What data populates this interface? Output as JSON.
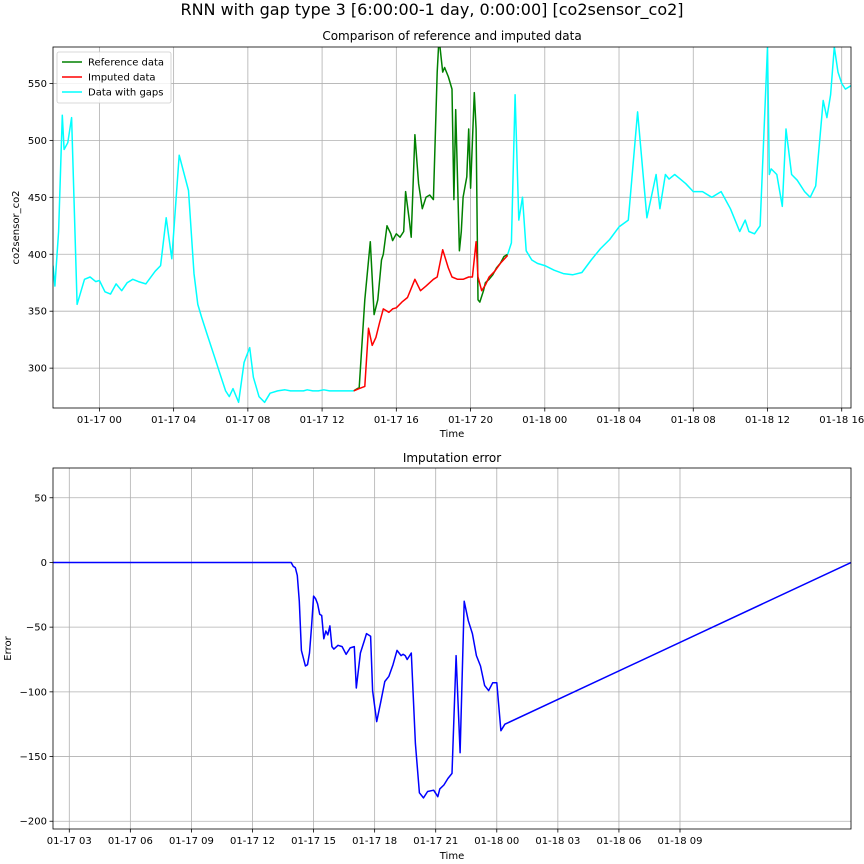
{
  "figure": {
    "suptitle": "RNN with gap type 3 [6:00:00-1 day, 0:00:00] [co2sensor_co2]"
  },
  "chart_data": [
    {
      "type": "line",
      "title": "Comparison of reference and imputed data",
      "xlabel": "Time",
      "ylabel": "co2sensor_co2",
      "x_unit": "hours since 2018-01-16 00:00",
      "xlim": [
        21.5,
        64.5
      ],
      "ylim": [
        265,
        582
      ],
      "xticks": [
        {
          "value": 24,
          "label": "01-17 00"
        },
        {
          "value": 28,
          "label": "01-17 04"
        },
        {
          "value": 32,
          "label": "01-17 08"
        },
        {
          "value": 36,
          "label": "01-17 12"
        },
        {
          "value": 40,
          "label": "01-17 16"
        },
        {
          "value": 44,
          "label": "01-17 20"
        },
        {
          "value": 48,
          "label": "01-18 00"
        },
        {
          "value": 52,
          "label": "01-18 04"
        },
        {
          "value": 56,
          "label": "01-18 08"
        },
        {
          "value": 60,
          "label": "01-18 12"
        },
        {
          "value": 64,
          "label": "01-18 16"
        }
      ],
      "yticks": [
        300,
        350,
        400,
        450,
        500,
        550
      ],
      "grid": true,
      "legend": "top-left",
      "series": [
        {
          "name": "Reference data",
          "color": "#008000",
          "x": [
            37.7,
            38.0,
            38.3,
            38.6,
            38.8,
            39.0,
            39.2,
            39.3,
            39.5,
            39.7,
            39.8,
            40.0,
            40.2,
            40.4,
            40.5,
            40.7,
            40.8,
            41.0,
            41.2,
            41.4,
            41.6,
            41.8,
            42.0,
            42.2,
            42.3,
            42.5,
            42.6,
            42.8,
            43.0,
            43.1,
            43.2,
            43.4,
            43.5,
            43.6,
            43.8,
            43.9,
            44.0,
            44.2,
            44.3,
            44.4,
            44.5,
            44.7,
            44.8,
            45.0,
            45.2,
            45.4,
            45.6,
            45.8,
            46.0
          ],
          "y": [
            280,
            283,
            360,
            411,
            347,
            360,
            395,
            400,
            425,
            418,
            412,
            418,
            415,
            420,
            455,
            430,
            415,
            505,
            462,
            440,
            450,
            452,
            448,
            560,
            590,
            560,
            564,
            556,
            545,
            448,
            527,
            403,
            420,
            450,
            468,
            510,
            458,
            542,
            510,
            360,
            358,
            368,
            375,
            378,
            382,
            388,
            392,
            398,
            400
          ]
        },
        {
          "name": "Imputed data",
          "color": "#ff0000",
          "x": [
            37.7,
            38.0,
            38.3,
            38.5,
            38.7,
            38.9,
            39.1,
            39.3,
            39.6,
            39.8,
            40.0,
            40.3,
            40.6,
            41.0,
            41.3,
            41.6,
            41.8,
            42.0,
            42.2,
            42.5,
            42.8,
            43.0,
            43.3,
            43.6,
            43.9,
            44.1,
            44.3,
            44.4,
            44.6,
            44.8,
            45.0,
            45.3,
            45.6,
            46.0
          ],
          "y": [
            280,
            282,
            284,
            335,
            320,
            327,
            340,
            352,
            349,
            352,
            353,
            358,
            362,
            378,
            368,
            372,
            375,
            378,
            380,
            404,
            388,
            380,
            378,
            378,
            380,
            380,
            411,
            380,
            368,
            373,
            380,
            385,
            392,
            399
          ]
        },
        {
          "name": "Data with gaps",
          "color": "#00ffff",
          "x": [
            21.5,
            21.6,
            21.8,
            22.0,
            22.1,
            22.3,
            22.5,
            22.8,
            23.2,
            23.5,
            23.8,
            24.0,
            24.3,
            24.6,
            24.9,
            25.2,
            25.5,
            25.8,
            26.1,
            26.5,
            27.0,
            27.3,
            27.6,
            27.9,
            28.3,
            28.8,
            29.1,
            29.3,
            29.5,
            29.8,
            30.2,
            30.5,
            30.8,
            31.0,
            31.2,
            31.5,
            31.8,
            32.1,
            32.3,
            32.6,
            32.9,
            33.2,
            33.6,
            34.0,
            34.3,
            34.6,
            34.8,
            35.0,
            35.2,
            35.5,
            35.8,
            36.1,
            36.4,
            36.7,
            37.0,
            37.4,
            37.7
          ],
          "y": [
            390,
            372,
            420,
            522,
            492,
            498,
            520,
            356,
            378,
            380,
            376,
            377,
            367,
            365,
            374,
            368,
            375,
            378,
            376,
            374,
            385,
            390,
            432,
            396,
            487,
            456,
            383,
            356,
            345,
            330,
            310,
            295,
            280,
            275,
            282,
            270,
            305,
            318,
            292,
            275,
            270,
            278,
            280,
            281,
            280,
            280,
            280,
            280,
            281,
            280,
            280,
            281,
            280,
            280,
            280,
            280,
            280
          ]
        },
        {
          "name": "Data with gaps",
          "color": "#00ffff",
          "x": [
            46.0,
            46.2,
            46.4,
            46.6,
            46.8,
            47.0,
            47.3,
            47.6,
            48.0,
            48.5,
            49.0,
            49.5,
            50.0,
            50.5,
            51.0,
            51.5,
            52.0,
            52.5,
            53.0,
            53.5,
            54.0,
            54.2,
            54.5,
            54.7,
            55.0,
            55.3,
            55.6,
            56.0,
            56.5,
            57.0,
            57.5,
            58.0,
            58.5,
            58.8,
            59.0,
            59.3,
            59.6,
            60.0,
            60.1,
            60.2,
            60.5,
            60.8,
            61.0,
            61.3,
            61.6,
            62.0,
            62.3,
            62.6,
            63.0,
            63.2,
            63.4,
            63.6,
            63.8,
            64.0,
            64.2,
            64.5
          ],
          "y": [
            400,
            410,
            540,
            430,
            450,
            403,
            395,
            392,
            390,
            386,
            383,
            382,
            384,
            395,
            405,
            413,
            424,
            430,
            525,
            432,
            470,
            440,
            470,
            466,
            470,
            466,
            462,
            455,
            455,
            450,
            455,
            440,
            420,
            430,
            420,
            418,
            425,
            582,
            470,
            475,
            470,
            442,
            510,
            470,
            465,
            455,
            450,
            460,
            535,
            520,
            540,
            582,
            560,
            550,
            545,
            548
          ]
        }
      ]
    },
    {
      "type": "line",
      "title": "Imputation error",
      "xlabel": "Time",
      "ylabel": "Error",
      "x_unit": "hours since 2018-01-16 00:00",
      "xlim": [
        26.2,
        65.4
      ],
      "ylim": [
        -206,
        73
      ],
      "xticks": [
        {
          "value": 27,
          "label": "01-17 03"
        },
        {
          "value": 30,
          "label": "01-17 06"
        },
        {
          "value": 33,
          "label": "01-17 09"
        },
        {
          "value": 36,
          "label": "01-17 12"
        },
        {
          "value": 39,
          "label": "01-17 15"
        },
        {
          "value": 42,
          "label": "01-17 18"
        },
        {
          "value": 45,
          "label": "01-17 21"
        },
        {
          "value": 48,
          "label": "01-18 00"
        },
        {
          "value": 51,
          "label": "01-18 03"
        },
        {
          "value": 54,
          "label": "01-18 06"
        },
        {
          "value": 57,
          "label": "01-18 09"
        }
      ],
      "yticks": [
        -200,
        -150,
        -100,
        -50,
        0,
        50
      ],
      "grid": true,
      "series": [
        {
          "name": "",
          "color": "#0000ff",
          "x": [
            26.2,
            37.7,
            37.9,
            38.0,
            38.1,
            38.2,
            38.3,
            38.4,
            38.6,
            38.7,
            38.8,
            38.9,
            39.0,
            39.1,
            39.2,
            39.3,
            39.4,
            39.5,
            39.6,
            39.7,
            39.8,
            39.9,
            40.0,
            40.2,
            40.4,
            40.6,
            40.8,
            41.0,
            41.1,
            41.3,
            41.5,
            41.6,
            41.8,
            41.9,
            42.1,
            42.3,
            42.5,
            42.7,
            42.9,
            43.1,
            43.3,
            43.4,
            43.5,
            43.6,
            43.8,
            44.0,
            44.2,
            44.4,
            44.6,
            44.9,
            45.1,
            45.2,
            45.4,
            45.6,
            45.8,
            46.0,
            46.2,
            46.4,
            46.6,
            46.8,
            47.0,
            47.2,
            47.4,
            47.6,
            47.8,
            48.0,
            48.2,
            48.4,
            65.4
          ],
          "y": [
            0,
            0,
            0,
            -3,
            -4,
            -10,
            -30,
            -68,
            -80,
            -79,
            -70,
            -50,
            -26,
            -28,
            -32,
            -40,
            -41,
            -59,
            -53,
            -56,
            -49,
            -65,
            -67,
            -64,
            -65,
            -71,
            -66,
            -65,
            -97,
            -70,
            -60,
            -55,
            -57,
            -99,
            -123,
            -108,
            -92,
            -88,
            -79,
            -68,
            -72,
            -71,
            -72,
            -75,
            -70,
            -140,
            -178,
            -182,
            -177,
            -176,
            -181,
            -175,
            -172,
            -167,
            -163,
            -72,
            -147,
            -30,
            -45,
            -55,
            -72,
            -80,
            -95,
            -99,
            -93,
            -93,
            -130,
            -125,
            0
          ]
        }
      ]
    }
  ]
}
